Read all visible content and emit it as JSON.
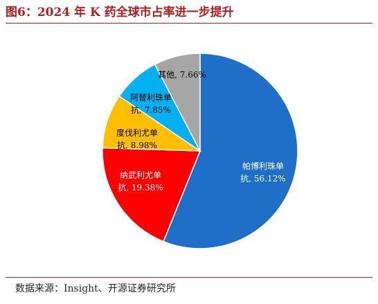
{
  "title": "图6：2024 年 K 药全球市占率进一步提升",
  "source": "数据来源：Insight、开源证券研究所",
  "chart_data": {
    "type": "pie",
    "title": "",
    "unit": "%",
    "slices": [
      {
        "name": "帕博利珠单抗",
        "value": 56.12,
        "color": "#1f6fc9",
        "label_line1": "帕博利珠单",
        "label_line2": "抗, 56.12%"
      },
      {
        "name": "纳武利尤单抗",
        "value": 19.38,
        "color": "#ff0000",
        "label_line1": "纳武利尤单",
        "label_line2": "抗, 19.38%"
      },
      {
        "name": "度伐利尤单抗",
        "value": 8.98,
        "color": "#ffbf00",
        "label_line1": "度伐利尤单",
        "label_line2": "抗, 8.98%"
      },
      {
        "name": "阿替利珠单抗",
        "value": 7.85,
        "color": "#00b0f0",
        "label_line1": "阿替利珠单",
        "label_line2": "抗, 7.85%"
      },
      {
        "name": "其他",
        "value": 7.66,
        "color": "#a6a6a6",
        "label_line1": "其他, 7.66%",
        "label_line2": ""
      }
    ],
    "legend": "none"
  }
}
